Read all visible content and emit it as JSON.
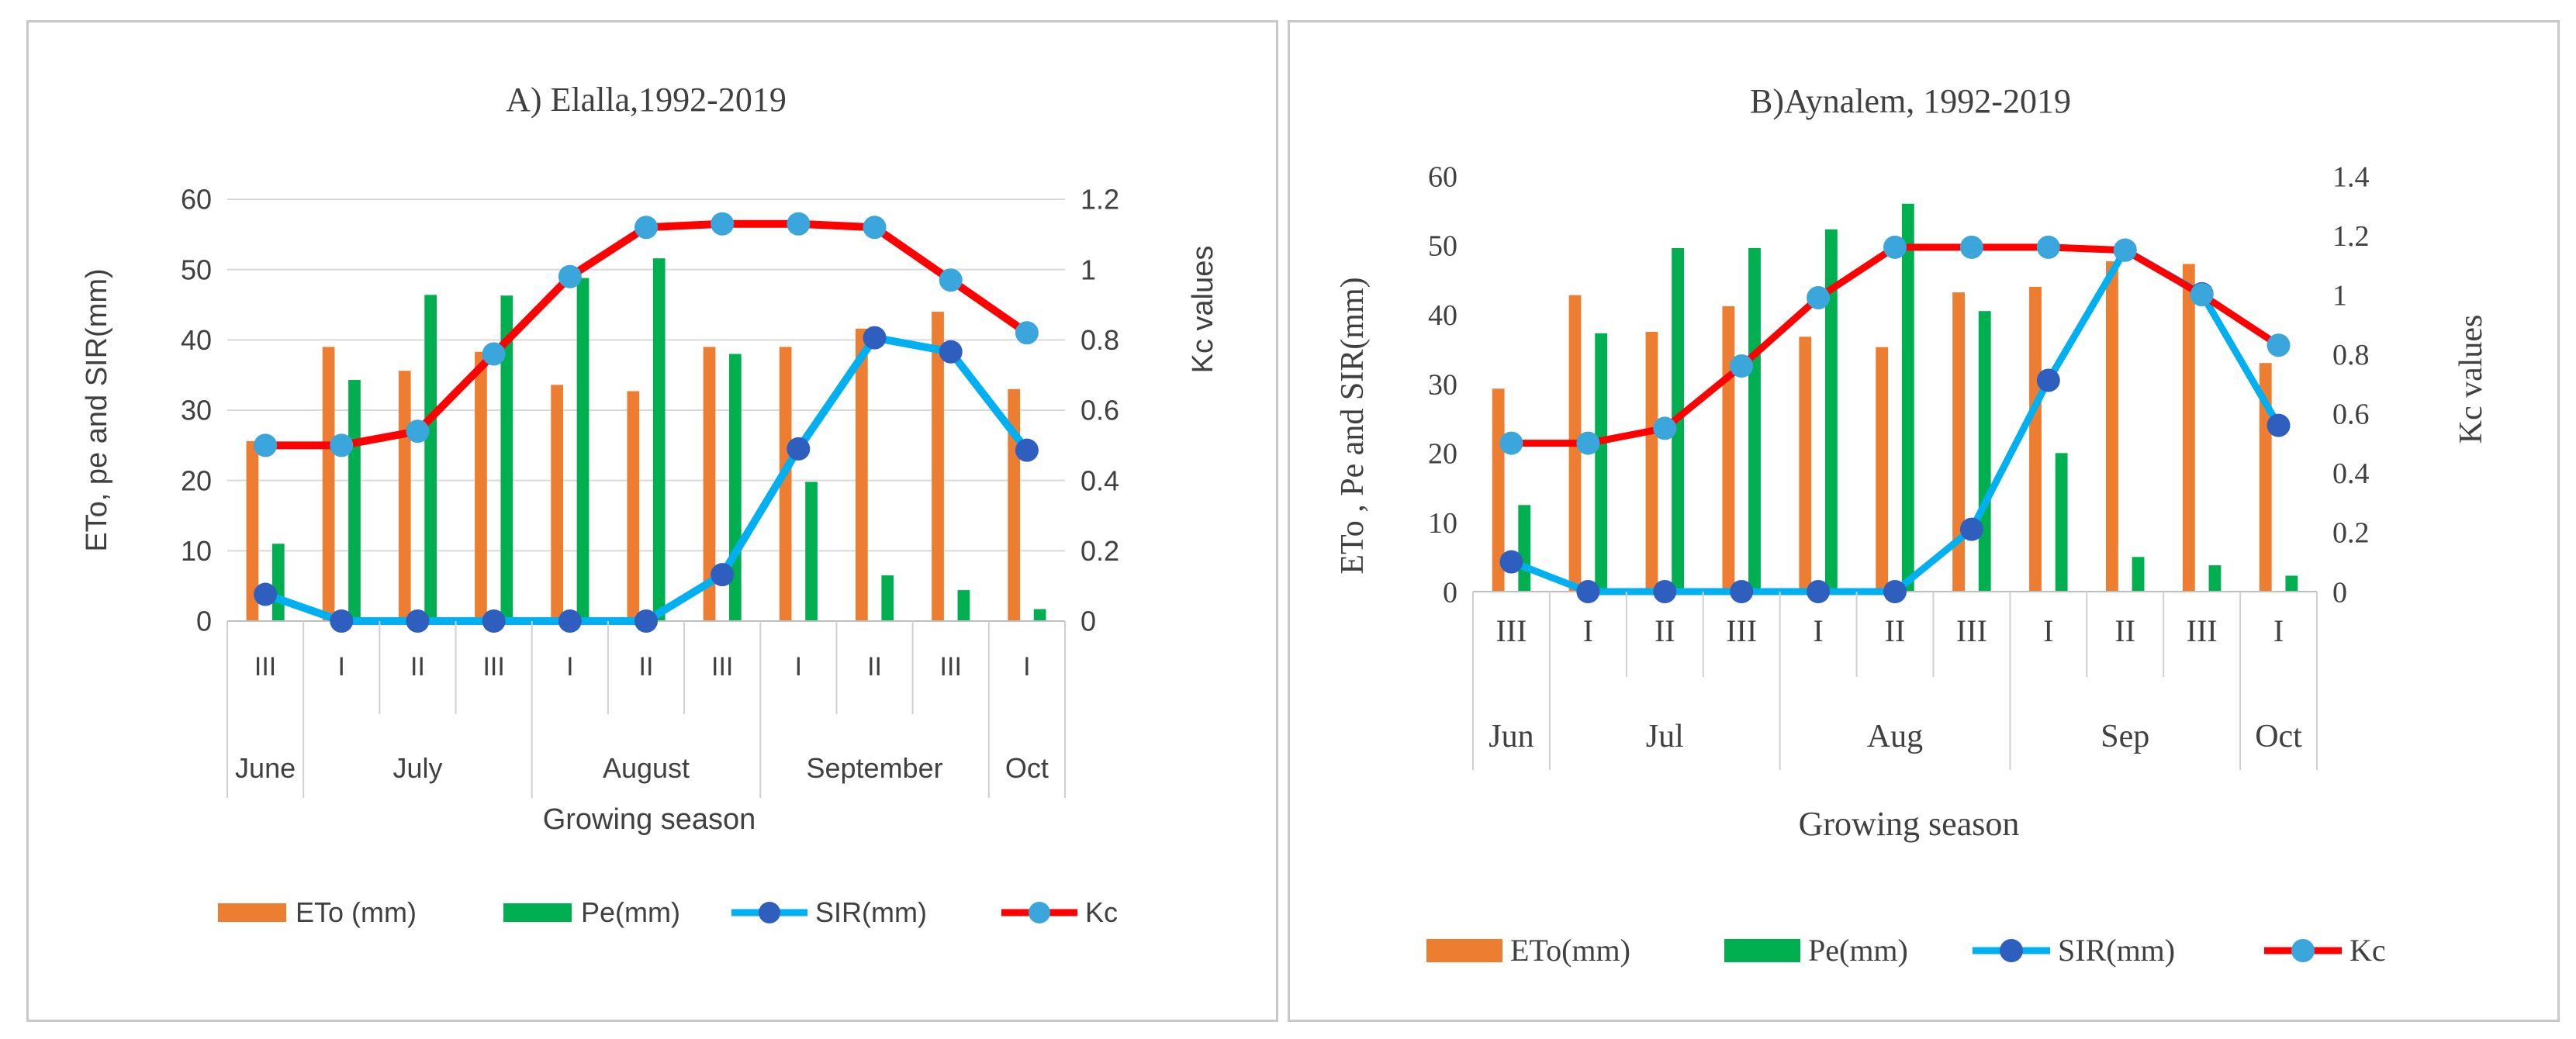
{
  "chart_data": [
    {
      "type": "bar",
      "title": "A) Elalla,1992-2019",
      "xlabel": "Growing season",
      "ylabel": "ETo,  pe and SIR(mm)",
      "y2label": "Kc values",
      "ylim": [
        0,
        60
      ],
      "y2lim": [
        0,
        1.2
      ],
      "yticks": [
        "0",
        "10",
        "20",
        "30",
        "40",
        "50",
        "60"
      ],
      "y2ticks": [
        "0",
        "0.2",
        "0.4",
        "0.6",
        "0.8",
        "1",
        "1.2"
      ],
      "categories": [
        "III",
        "I",
        "II",
        "III",
        "I",
        "II",
        "III",
        "I",
        "II",
        "III",
        "I"
      ],
      "months": [
        {
          "label": "June",
          "span": 1
        },
        {
          "label": "July",
          "span": 3
        },
        {
          "label": "August",
          "span": 3
        },
        {
          "label": "September",
          "span": 3
        },
        {
          "label": "Oct",
          "span": 1
        }
      ],
      "series": [
        {
          "name": "ETo (mm)",
          "kind": "bar",
          "axis": "left",
          "color": "#ED7D31",
          "values": [
            25.6,
            39,
            35.6,
            38.3,
            33.6,
            32.7,
            39,
            39,
            41.6,
            44,
            33
          ]
        },
        {
          "name": "Pe(mm)",
          "kind": "bar",
          "axis": "left",
          "color": "#00B050",
          "values": [
            11,
            34.3,
            46.4,
            46.3,
            48.8,
            51.6,
            38,
            19.8,
            6.5,
            4.4,
            1.7
          ]
        },
        {
          "name": "SIR(mm)",
          "kind": "line",
          "axis": "left",
          "color": "#00B0F0",
          "marker": "#2E5FBF",
          "values": [
            3.8,
            0,
            0,
            0,
            0,
            0,
            6.6,
            24.5,
            40.3,
            38.3,
            24.3
          ]
        },
        {
          "name": "Kc",
          "kind": "line",
          "axis": "right",
          "color": "#FF0000",
          "marker": "#3AA6DC",
          "values": [
            0.5,
            0.5,
            0.54,
            0.76,
            0.98,
            1.12,
            1.13,
            1.13,
            1.12,
            0.97,
            0.82
          ]
        }
      ],
      "legend": [
        "ETo (mm)",
        "Pe(mm)",
        "SIR(mm)",
        "Kc"
      ],
      "legend_position": "bottom"
    },
    {
      "type": "bar",
      "title": "B)Aynalem, 1992-2019",
      "xlabel": "Growing season",
      "ylabel": "ETo , Pe and SIR(mm)",
      "y2label": "Kc  values",
      "ylim": [
        0,
        60
      ],
      "y2lim": [
        0,
        1.4
      ],
      "yticks": [
        "0",
        "10",
        "20",
        "30",
        "40",
        "50",
        "60"
      ],
      "y2ticks": [
        "0",
        "0.2",
        "0.4",
        "0.6",
        "0.8",
        "1",
        "1.2",
        "1.4"
      ],
      "categories": [
        "III",
        "I",
        "II",
        "III",
        "I",
        "II",
        "III",
        "I",
        "II",
        "III",
        "I"
      ],
      "months": [
        {
          "label": "Jun",
          "span": 1
        },
        {
          "label": "Jul",
          "span": 3
        },
        {
          "label": "Aug",
          "span": 3
        },
        {
          "label": "Sep",
          "span": 3
        },
        {
          "label": "Oct",
          "span": 1
        }
      ],
      "series": [
        {
          "name": "ETo(mm)",
          "kind": "bar",
          "axis": "left",
          "color": "#ED7D31",
          "values": [
            29.3,
            42.8,
            37.5,
            41.2,
            36.8,
            35.3,
            43.2,
            44,
            47.7,
            47.3,
            33
          ]
        },
        {
          "name": "Pe(mm)",
          "kind": "bar",
          "axis": "left",
          "color": "#00B050",
          "values": [
            12.5,
            37.3,
            49.6,
            49.6,
            52.3,
            56,
            40.5,
            20,
            5,
            3.8,
            2.3
          ]
        },
        {
          "name": "SIR(mm)",
          "kind": "line",
          "axis": "left",
          "color": "#00B0F0",
          "marker": "#2E5FBF",
          "values": [
            4.3,
            0,
            0,
            0,
            0,
            0,
            9,
            30.5,
            49.3,
            43,
            24
          ]
        },
        {
          "name": "Kc",
          "kind": "line",
          "axis": "right",
          "color": "#FF0000",
          "marker": "#3AA6DC",
          "values": [
            0.5,
            0.5,
            0.55,
            0.76,
            0.99,
            1.16,
            1.16,
            1.16,
            1.15,
            1.0,
            0.83
          ]
        }
      ],
      "legend": [
        "ETo(mm)",
        "Pe(mm)",
        "SIR(mm)",
        "Kc"
      ],
      "legend_position": "bottom"
    }
  ]
}
